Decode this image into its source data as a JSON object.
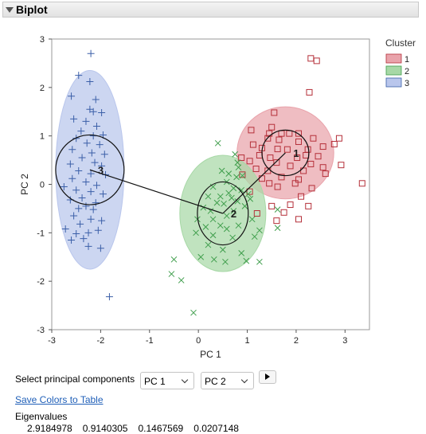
{
  "outline": {
    "title": "Biplot"
  },
  "controls": {
    "select_label": "Select principal components",
    "pc_x": "PC 1",
    "pc_y": "PC 2",
    "save_link": "Save Colors to Table"
  },
  "eigen": {
    "label": "Eigenvalues",
    "values": [
      "2.9184978",
      "0.9140305",
      "0.1467569",
      "0.0207148"
    ]
  },
  "chart_data": {
    "type": "scatter",
    "xlabel": "PC 1",
    "ylabel": "PC 2",
    "xlim": [
      -3,
      3.5
    ],
    "ylim": [
      -3,
      3
    ],
    "xticks": [
      -3,
      -2,
      -1,
      0,
      1,
      2,
      3
    ],
    "yticks": [
      -3,
      -2,
      -1,
      0,
      1,
      2,
      3
    ],
    "grid": false,
    "legend": {
      "title": "Cluster",
      "placement": "right"
    },
    "origin": [
      0.5,
      -0.6
    ],
    "series": [
      {
        "name": "1",
        "marker": "square",
        "color": "#b5303a",
        "fill": "#e9a3ab",
        "center_label": "1",
        "center": [
          1.78,
          0.65
        ],
        "ellipse_radii": [
          0.99,
          0.95
        ],
        "circle_radii": [
          0.48,
          0.47
        ],
        "points": [
          [
            2.3,
            2.6
          ],
          [
            2.42,
            2.55
          ],
          [
            2.27,
            1.9
          ],
          [
            1.55,
            1.48
          ],
          [
            1.5,
            1.18
          ],
          [
            1.45,
            1.05
          ],
          [
            1.08,
            1.12
          ],
          [
            1.7,
            1.05
          ],
          [
            1.86,
            1.05
          ],
          [
            2.05,
            1.05
          ],
          [
            1.42,
            0.95
          ],
          [
            1.65,
            0.92
          ],
          [
            2.05,
            0.88
          ],
          [
            2.35,
            0.95
          ],
          [
            2.88,
            0.95
          ],
          [
            1.12,
            0.82
          ],
          [
            1.3,
            0.75
          ],
          [
            1.62,
            0.73
          ],
          [
            1.82,
            0.72
          ],
          [
            2.24,
            0.72
          ],
          [
            2.55,
            0.78
          ],
          [
            2.78,
            0.83
          ],
          [
            1.25,
            0.6
          ],
          [
            1.47,
            0.55
          ],
          [
            2.02,
            0.55
          ],
          [
            2.2,
            0.6
          ],
          [
            2.45,
            0.58
          ],
          [
            0.88,
            0.55
          ],
          [
            1.05,
            0.48
          ],
          [
            1.6,
            0.45
          ],
          [
            1.88,
            0.38
          ],
          [
            2.3,
            0.42
          ],
          [
            2.55,
            0.35
          ],
          [
            2.92,
            0.4
          ],
          [
            1.18,
            0.32
          ],
          [
            1.42,
            0.28
          ],
          [
            2.15,
            0.28
          ],
          [
            2.6,
            0.22
          ],
          [
            0.9,
            0.2
          ],
          [
            1.3,
            0.12
          ],
          [
            1.7,
            0.15
          ],
          [
            2.05,
            0.1
          ],
          [
            1.45,
            0.02
          ],
          [
            1.98,
            0.02
          ],
          [
            3.35,
            0.02
          ],
          [
            1.05,
            -0.15
          ],
          [
            1.62,
            -0.05
          ],
          [
            2.32,
            -0.08
          ],
          [
            2.1,
            -0.25
          ],
          [
            1.5,
            -0.45
          ],
          [
            1.88,
            -0.42
          ],
          [
            2.25,
            -0.45
          ],
          [
            1.75,
            -0.58
          ],
          [
            2.05,
            -0.72
          ],
          [
            1.2,
            -0.6
          ],
          [
            1.6,
            -0.75
          ]
        ]
      },
      {
        "name": "2",
        "marker": "x",
        "color": "#3f9e4c",
        "fill": "#a7d8a6",
        "center_label": "2",
        "center": [
          0.5,
          -0.6
        ],
        "ellipse_radii": [
          0.88,
          1.2
        ],
        "circle_radii": [
          0.52,
          0.65
        ],
        "points": [
          [
            0.4,
            0.85
          ],
          [
            0.75,
            0.62
          ],
          [
            0.8,
            0.45
          ],
          [
            0.82,
            0.35
          ],
          [
            0.48,
            0.28
          ],
          [
            0.62,
            0.22
          ],
          [
            0.78,
            0.15
          ],
          [
            0.9,
            0.18
          ],
          [
            0.58,
            0.05
          ],
          [
            0.3,
            -0.05
          ],
          [
            0.72,
            -0.08
          ],
          [
            0.88,
            -0.12
          ],
          [
            0.62,
            -0.18
          ],
          [
            1.02,
            -0.2
          ],
          [
            0.45,
            -0.25
          ],
          [
            0.2,
            -0.25
          ],
          [
            0.68,
            -0.28
          ],
          [
            0.8,
            -0.35
          ],
          [
            0.38,
            -0.38
          ],
          [
            0.52,
            -0.4
          ],
          [
            1.06,
            -0.3
          ],
          [
            0.95,
            -0.45
          ],
          [
            0.1,
            -0.48
          ],
          [
            0.25,
            -0.55
          ],
          [
            0.72,
            -0.55
          ],
          [
            0.58,
            -0.65
          ],
          [
            0.3,
            -0.72
          ],
          [
            -0.02,
            -0.72
          ],
          [
            1.1,
            -0.72
          ],
          [
            0.45,
            -0.85
          ],
          [
            0.15,
            -0.88
          ],
          [
            0.82,
            -0.85
          ],
          [
            0.58,
            -0.92
          ],
          [
            1.25,
            -0.95
          ],
          [
            -0.05,
            -1.0
          ],
          [
            0.3,
            -1.05
          ],
          [
            1.15,
            -1.08
          ],
          [
            0.7,
            -1.1
          ],
          [
            0.2,
            -1.25
          ],
          [
            0.5,
            -1.35
          ],
          [
            0.05,
            -1.5
          ],
          [
            0.88,
            -1.42
          ],
          [
            0.32,
            -1.55
          ],
          [
            -0.5,
            -1.55
          ],
          [
            0.55,
            -1.6
          ],
          [
            0.98,
            -1.58
          ],
          [
            1.25,
            -1.6
          ],
          [
            -0.55,
            -1.85
          ],
          [
            -0.35,
            -1.98
          ],
          [
            -0.1,
            -2.65
          ],
          [
            1.62,
            -0.52
          ],
          [
            1.62,
            -0.9
          ]
        ]
      },
      {
        "name": "3",
        "marker": "plus",
        "color": "#3b5fa8",
        "fill": "#b9c6ec",
        "center_label": "3",
        "center": [
          -2.22,
          0.3
        ],
        "ellipse_radii": [
          0.7,
          2.05
        ],
        "circle_radii": [
          0.7,
          0.72
        ],
        "points": [
          [
            -2.2,
            2.7
          ],
          [
            -2.45,
            2.25
          ],
          [
            -2.22,
            2.12
          ],
          [
            -2.6,
            1.82
          ],
          [
            -2.1,
            1.75
          ],
          [
            -2.22,
            1.55
          ],
          [
            -1.98,
            1.48
          ],
          [
            -2.15,
            1.5
          ],
          [
            -2.55,
            1.35
          ],
          [
            -2.3,
            1.3
          ],
          [
            -2.08,
            1.2
          ],
          [
            -2.4,
            1.1
          ],
          [
            -2.15,
            1.0
          ],
          [
            -1.95,
            1.02
          ],
          [
            -2.5,
            0.95
          ],
          [
            -2.28,
            0.85
          ],
          [
            -2.02,
            0.82
          ],
          [
            -2.58,
            0.72
          ],
          [
            -2.18,
            0.65
          ],
          [
            -1.92,
            0.62
          ],
          [
            -2.38,
            0.55
          ],
          [
            -2.62,
            0.42
          ],
          [
            -2.12,
            0.45
          ],
          [
            -1.98,
            0.38
          ],
          [
            -2.45,
            0.28
          ],
          [
            -2.2,
            0.22
          ],
          [
            -1.9,
            0.2
          ],
          [
            -2.58,
            0.12
          ],
          [
            -2.3,
            0.05
          ],
          [
            -2.08,
            -0.02
          ],
          [
            -2.75,
            -0.05
          ],
          [
            -2.5,
            -0.12
          ],
          [
            -2.2,
            -0.15
          ],
          [
            -1.95,
            -0.2
          ],
          [
            -2.38,
            -0.28
          ],
          [
            -2.62,
            -0.32
          ],
          [
            -2.1,
            -0.38
          ],
          [
            -2.3,
            -0.45
          ],
          [
            -2.45,
            -0.5
          ],
          [
            -2.15,
            -0.52
          ],
          [
            -2.55,
            -0.65
          ],
          [
            -2.2,
            -0.72
          ],
          [
            -1.98,
            -0.75
          ],
          [
            -2.42,
            -0.82
          ],
          [
            -2.72,
            -0.92
          ],
          [
            -2.5,
            -1.02
          ],
          [
            -2.25,
            -1.0
          ],
          [
            -2.05,
            -0.95
          ],
          [
            -2.6,
            -1.15
          ],
          [
            -2.35,
            -1.12
          ],
          [
            -2.25,
            -1.28
          ],
          [
            -2.0,
            -1.32
          ],
          [
            -1.82,
            -2.32
          ]
        ]
      }
    ]
  }
}
